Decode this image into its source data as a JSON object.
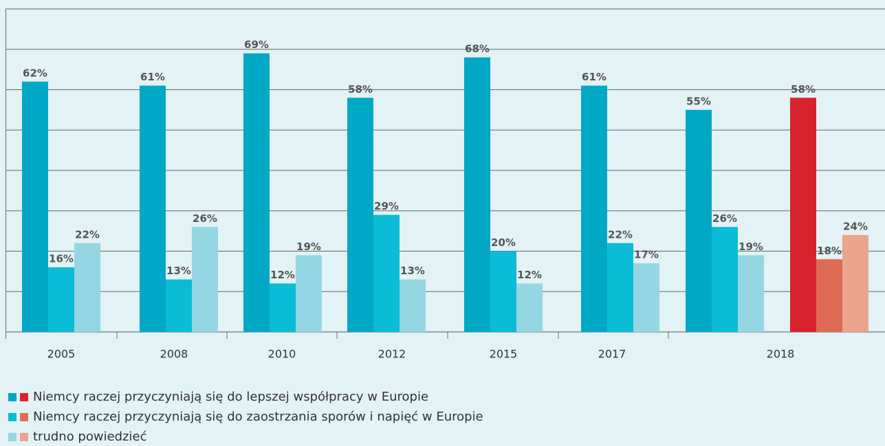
{
  "chart_data": {
    "type": "bar",
    "categories": [
      "2005",
      "2008",
      "2010",
      "2012",
      "2015",
      "2017",
      "2018",
      null
    ],
    "series": [
      {
        "name": "Niemcy raczej przyczyniają się do lepszej współpracy w Europie",
        "color": "#00a8c6",
        "highlight_color": "#d8232f",
        "values": [
          62,
          61,
          69,
          58,
          68,
          61,
          55,
          58
        ],
        "value_labels": [
          "62%",
          "61%",
          "69%",
          "58%",
          "68%",
          "61%",
          "55%",
          "58%"
        ]
      },
      {
        "name": "Niemcy raczej przyczyniają się do zaostrzania sporów i napięć w Europie",
        "color": "#0abcd5",
        "highlight_color": "#e06b55",
        "values": [
          16,
          13,
          12,
          29,
          20,
          22,
          26,
          18
        ],
        "value_labels": [
          "16%",
          "13%",
          "12%",
          "29%",
          "20%",
          "22%",
          "26%",
          "18%"
        ]
      },
      {
        "name": "trudno powiedzieć",
        "color": "#95d6e3",
        "highlight_color": "#eba48d",
        "values": [
          22,
          26,
          19,
          13,
          12,
          17,
          19,
          24
        ],
        "value_labels": [
          "22%",
          "26%",
          "19%",
          "13%",
          "12%",
          "17%",
          "19%",
          "24%"
        ]
      }
    ],
    "highlight_index": 7,
    "ylim": [
      0,
      80
    ],
    "yticks": [
      0,
      10,
      20,
      30,
      40,
      50,
      60,
      70,
      80
    ],
    "grid": true
  }
}
